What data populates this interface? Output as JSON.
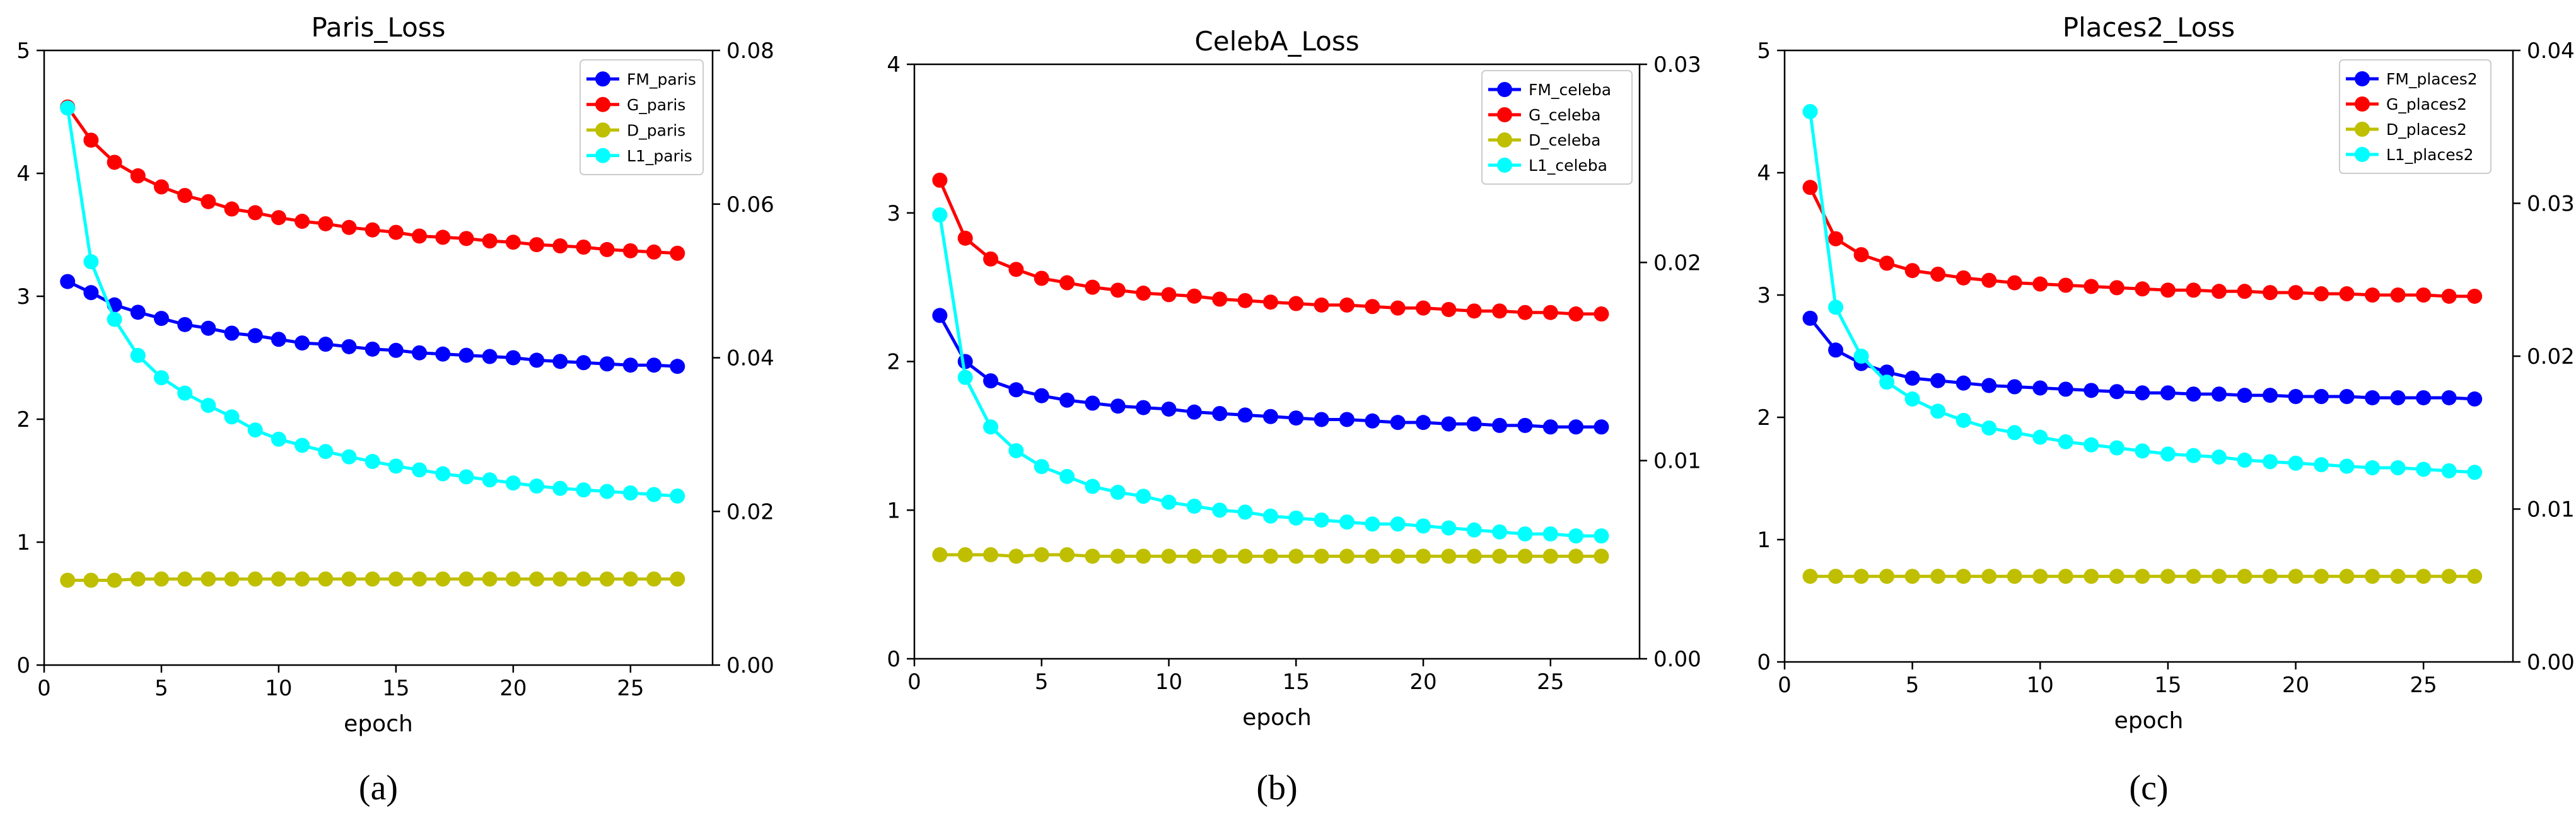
{
  "chart_data": [
    {
      "type": "line",
      "title": "Paris_Loss",
      "caption": "(a)",
      "xlabel": "epoch",
      "ylabel": "",
      "xlim": [
        0,
        28.5
      ],
      "ylim": [
        0,
        5
      ],
      "ylim_right": [
        0,
        0.08
      ],
      "xticks": [
        "0",
        "5",
        "10",
        "15",
        "20",
        "25"
      ],
      "yticks": [
        "0",
        "1",
        "2",
        "3",
        "4",
        "5"
      ],
      "yticks_right": [
        "0.00",
        "0.02",
        "0.04",
        "0.06",
        "0.08"
      ],
      "legend_position": "top-right",
      "x": [
        1,
        2,
        3,
        4,
        5,
        6,
        7,
        8,
        9,
        10,
        11,
        12,
        13,
        14,
        15,
        16,
        17,
        18,
        19,
        20,
        21,
        22,
        23,
        24,
        25,
        26,
        27
      ],
      "series": [
        {
          "name": "FM_paris",
          "color": "#0000ff",
          "axis": "left",
          "values": [
            3.12,
            3.03,
            2.93,
            2.87,
            2.82,
            2.77,
            2.74,
            2.7,
            2.68,
            2.65,
            2.62,
            2.61,
            2.59,
            2.57,
            2.56,
            2.54,
            2.53,
            2.52,
            2.51,
            2.5,
            2.48,
            2.47,
            2.46,
            2.45,
            2.44,
            2.44,
            2.43
          ]
        },
        {
          "name": "G_paris",
          "color": "#ff0000",
          "axis": "left",
          "values": [
            4.54,
            4.27,
            4.09,
            3.98,
            3.89,
            3.82,
            3.77,
            3.71,
            3.68,
            3.64,
            3.61,
            3.59,
            3.56,
            3.54,
            3.52,
            3.49,
            3.48,
            3.47,
            3.45,
            3.44,
            3.42,
            3.41,
            3.4,
            3.38,
            3.37,
            3.36,
            3.35
          ]
        },
        {
          "name": "D_paris",
          "color": "#bfbf00",
          "axis": "left",
          "values": [
            0.69,
            0.69,
            0.69,
            0.7,
            0.7,
            0.7,
            0.7,
            0.7,
            0.7,
            0.7,
            0.7,
            0.7,
            0.7,
            0.7,
            0.7,
            0.7,
            0.7,
            0.7,
            0.7,
            0.7,
            0.7,
            0.7,
            0.7,
            0.7,
            0.7,
            0.7,
            0.7
          ]
        },
        {
          "name": "L1_paris",
          "color": "#00ffff",
          "axis": "right",
          "values": [
            0.0725,
            0.0525,
            0.045,
            0.0403,
            0.0374,
            0.0354,
            0.0338,
            0.0323,
            0.0306,
            0.0294,
            0.0286,
            0.0278,
            0.0271,
            0.0265,
            0.0259,
            0.0254,
            0.0249,
            0.0245,
            0.0241,
            0.0237,
            0.0233,
            0.023,
            0.0228,
            0.0226,
            0.0224,
            0.0222,
            0.022
          ]
        }
      ]
    },
    {
      "type": "line",
      "title": "CelebA_Loss",
      "caption": "(b)",
      "xlabel": "epoch",
      "ylabel": "",
      "xlim": [
        0,
        28.5
      ],
      "ylim": [
        0,
        4
      ],
      "ylim_right": [
        0,
        0.03
      ],
      "xticks": [
        "0",
        "5",
        "10",
        "15",
        "20",
        "25"
      ],
      "yticks": [
        "0",
        "1",
        "2",
        "3",
        "4"
      ],
      "yticks_right": [
        "0.00",
        "0.01",
        "0.02",
        "0.03"
      ],
      "legend_position": "top-right",
      "x": [
        1,
        2,
        3,
        4,
        5,
        6,
        7,
        8,
        9,
        10,
        11,
        12,
        13,
        14,
        15,
        16,
        17,
        18,
        19,
        20,
        21,
        22,
        23,
        24,
        25,
        26,
        27
      ],
      "series": [
        {
          "name": "FM_celeba",
          "color": "#0000ff",
          "axis": "left",
          "values": [
            2.31,
            2.0,
            1.87,
            1.81,
            1.77,
            1.74,
            1.72,
            1.7,
            1.69,
            1.68,
            1.66,
            1.65,
            1.64,
            1.63,
            1.62,
            1.61,
            1.61,
            1.6,
            1.59,
            1.59,
            1.58,
            1.58,
            1.57,
            1.57,
            1.56,
            1.56,
            1.56
          ]
        },
        {
          "name": "G_celeba",
          "color": "#ff0000",
          "axis": "left",
          "values": [
            3.22,
            2.83,
            2.69,
            2.62,
            2.56,
            2.53,
            2.5,
            2.48,
            2.46,
            2.45,
            2.44,
            2.42,
            2.41,
            2.4,
            2.39,
            2.38,
            2.38,
            2.37,
            2.36,
            2.36,
            2.35,
            2.34,
            2.34,
            2.33,
            2.33,
            2.32,
            2.32
          ]
        },
        {
          "name": "D_celeba",
          "color": "#bfbf00",
          "axis": "left",
          "values": [
            0.7,
            0.7,
            0.7,
            0.69,
            0.7,
            0.7,
            0.69,
            0.69,
            0.69,
            0.69,
            0.69,
            0.69,
            0.69,
            0.69,
            0.69,
            0.69,
            0.69,
            0.69,
            0.69,
            0.69,
            0.69,
            0.69,
            0.69,
            0.69,
            0.69,
            0.69,
            0.69
          ]
        },
        {
          "name": "L1_celeba",
          "color": "#00ffff",
          "axis": "right",
          "values": [
            0.0224,
            0.0142,
            0.0117,
            0.0105,
            0.0097,
            0.0092,
            0.0087,
            0.0084,
            0.0082,
            0.0079,
            0.0077,
            0.0075,
            0.0074,
            0.0072,
            0.0071,
            0.007,
            0.0069,
            0.0068,
            0.0068,
            0.0067,
            0.0066,
            0.0065,
            0.0064,
            0.0063,
            0.0063,
            0.0062,
            0.0062
          ]
        }
      ]
    },
    {
      "type": "line",
      "title": "Places2_Loss",
      "caption": "(c)",
      "xlabel": "epoch",
      "ylabel": "",
      "xlim": [
        0,
        28.5
      ],
      "ylim": [
        0,
        5
      ],
      "ylim_right": [
        0,
        0.04
      ],
      "xticks": [
        "0",
        "5",
        "10",
        "15",
        "20",
        "25"
      ],
      "yticks": [
        "0",
        "1",
        "2",
        "3",
        "4",
        "5"
      ],
      "yticks_right": [
        "0.00",
        "0.01",
        "0.02",
        "0.03",
        "0.04"
      ],
      "legend_position": "top-right",
      "x": [
        1,
        2,
        3,
        4,
        5,
        6,
        7,
        8,
        9,
        10,
        11,
        12,
        13,
        14,
        15,
        16,
        17,
        18,
        19,
        20,
        21,
        22,
        23,
        24,
        25,
        26,
        27
      ],
      "series": [
        {
          "name": "FM_places2",
          "color": "#0000ff",
          "axis": "left",
          "values": [
            2.81,
            2.55,
            2.44,
            2.37,
            2.32,
            2.3,
            2.28,
            2.26,
            2.25,
            2.24,
            2.23,
            2.22,
            2.21,
            2.2,
            2.2,
            2.19,
            2.19,
            2.18,
            2.18,
            2.17,
            2.17,
            2.17,
            2.16,
            2.16,
            2.16,
            2.16,
            2.15
          ]
        },
        {
          "name": "G_places2",
          "color": "#ff0000",
          "axis": "left",
          "values": [
            3.88,
            3.46,
            3.33,
            3.26,
            3.2,
            3.17,
            3.14,
            3.12,
            3.1,
            3.09,
            3.08,
            3.07,
            3.06,
            3.05,
            3.04,
            3.04,
            3.03,
            3.03,
            3.02,
            3.02,
            3.01,
            3.01,
            3.0,
            3.0,
            3.0,
            2.99,
            2.99
          ]
        },
        {
          "name": "D_places2",
          "color": "#bfbf00",
          "axis": "left",
          "values": [
            0.7,
            0.7,
            0.7,
            0.7,
            0.7,
            0.7,
            0.7,
            0.7,
            0.7,
            0.7,
            0.7,
            0.7,
            0.7,
            0.7,
            0.7,
            0.7,
            0.7,
            0.7,
            0.7,
            0.7,
            0.7,
            0.7,
            0.7,
            0.7,
            0.7,
            0.7,
            0.7
          ]
        },
        {
          "name": "L1_places2",
          "color": "#00ffff",
          "axis": "right",
          "values": [
            0.036,
            0.0232,
            0.02,
            0.0183,
            0.0172,
            0.0164,
            0.0158,
            0.0153,
            0.015,
            0.0147,
            0.0144,
            0.0142,
            0.014,
            0.0138,
            0.0136,
            0.0135,
            0.0134,
            0.0132,
            0.0131,
            0.013,
            0.0129,
            0.0128,
            0.0127,
            0.0127,
            0.0126,
            0.0125,
            0.0124
          ]
        }
      ]
    }
  ]
}
